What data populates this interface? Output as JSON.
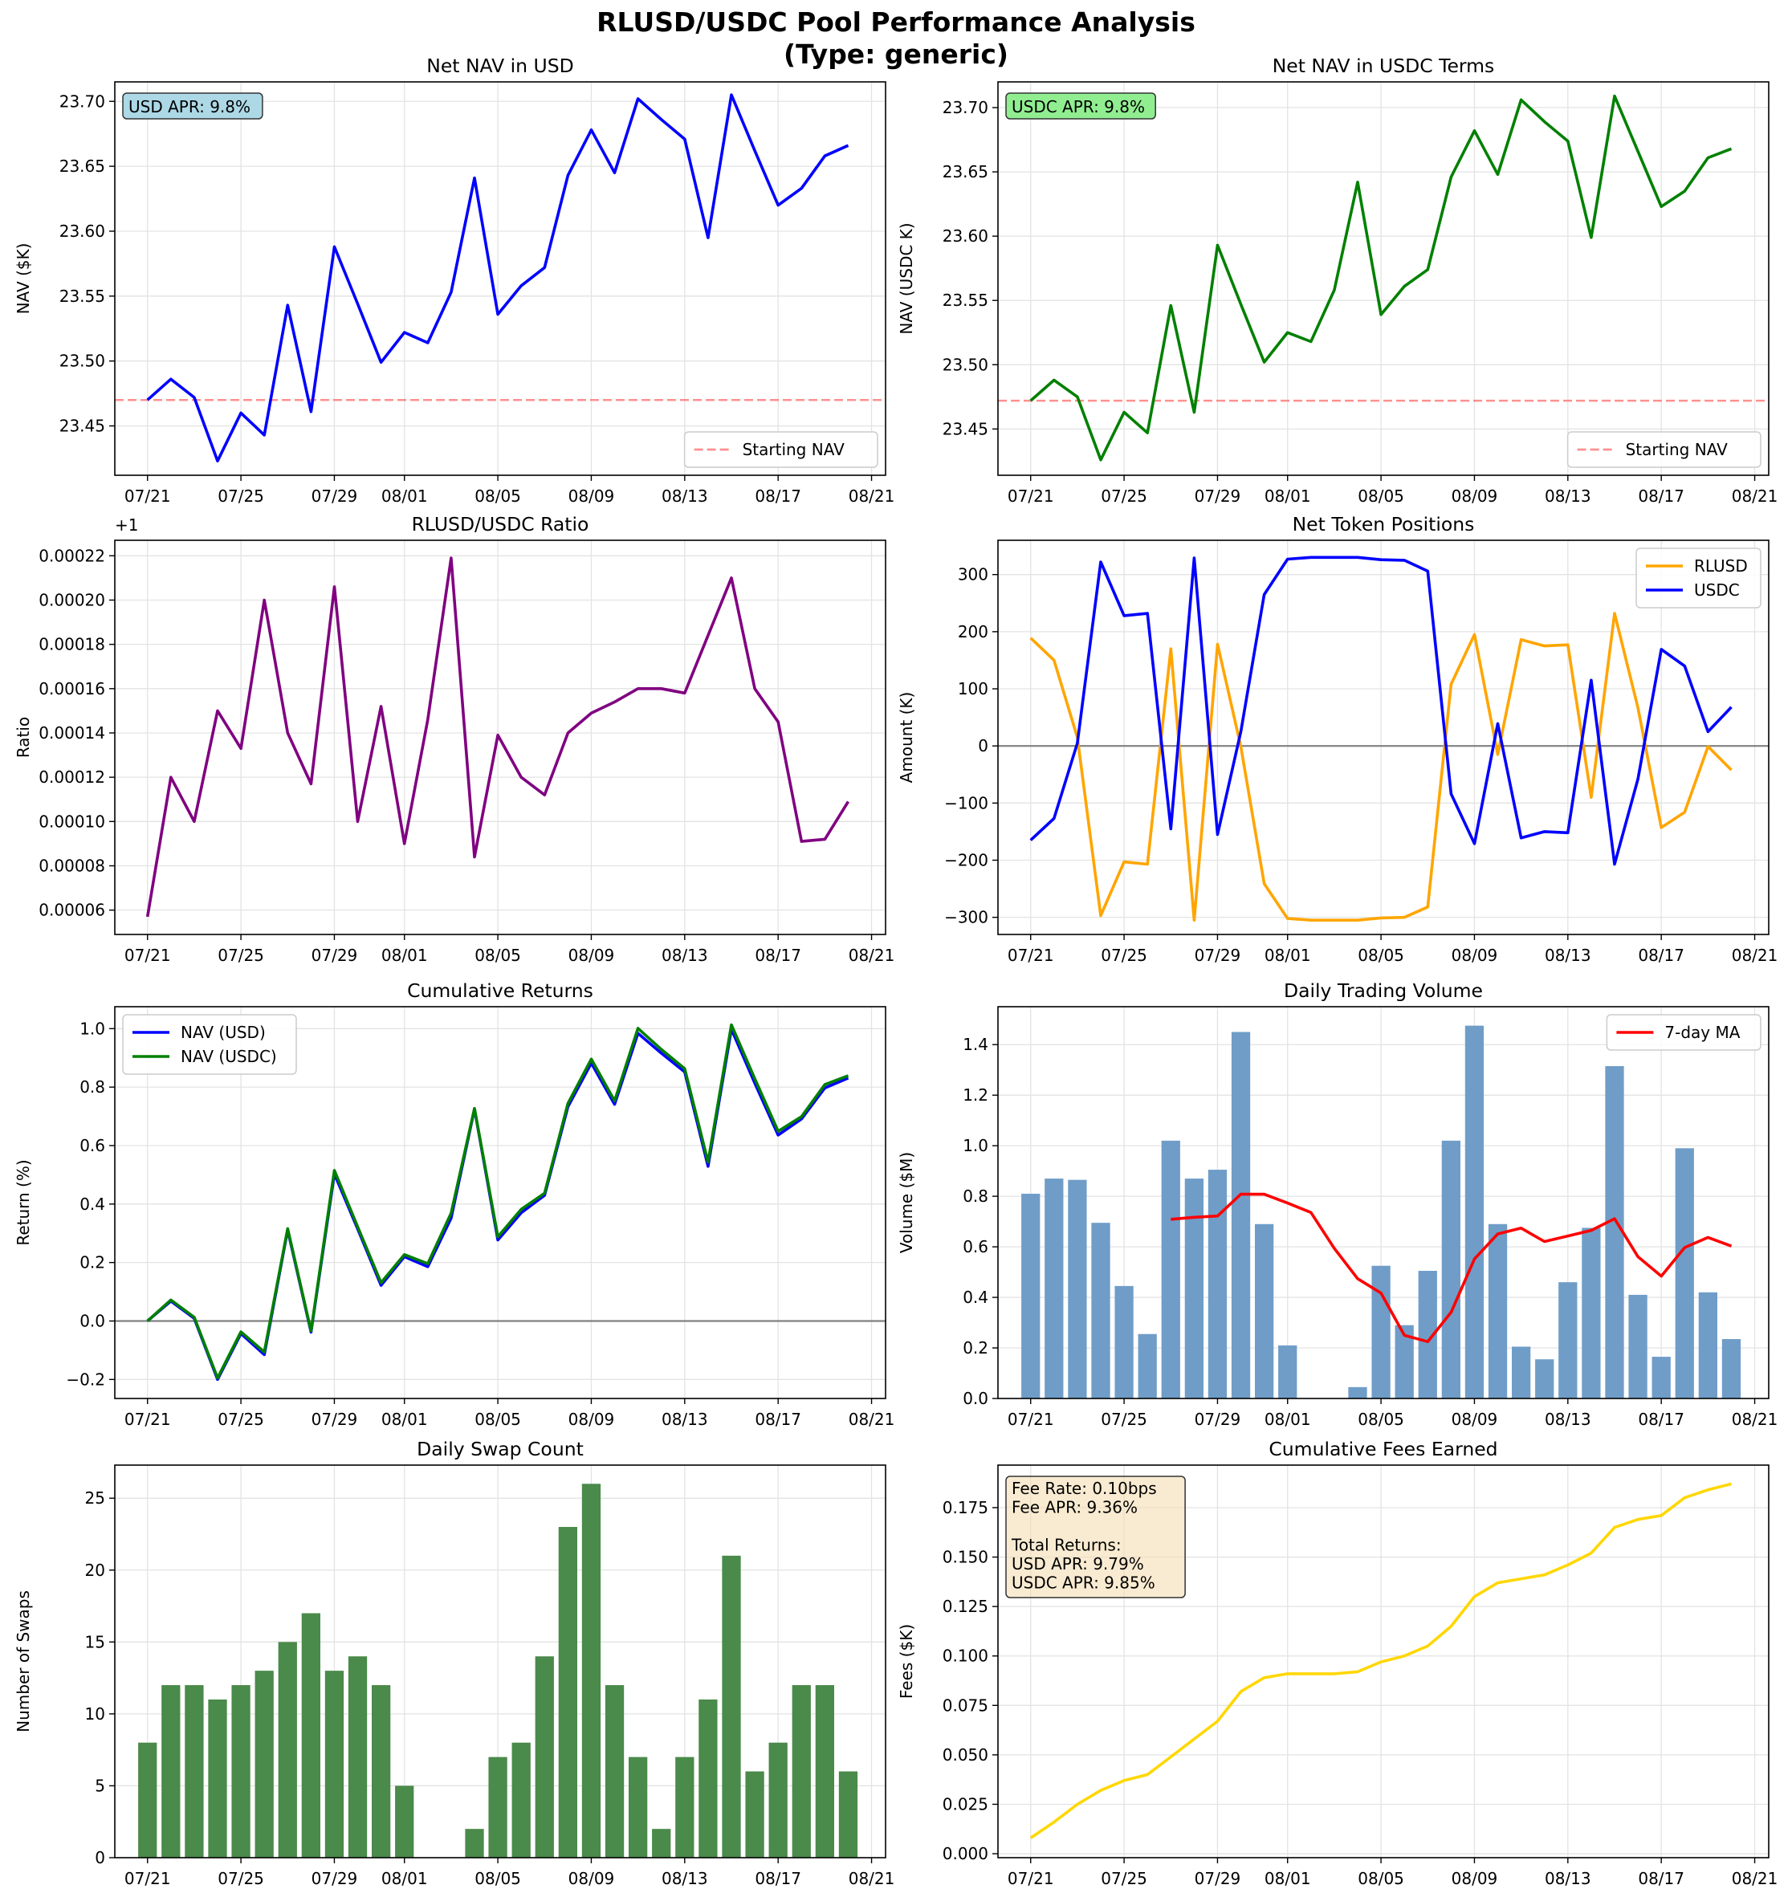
{
  "figure": {
    "title_line1": "RLUSD/USDC Pool Performance Analysis",
    "title_line2": "(Type: generic)"
  },
  "chart_data": [
    {
      "id": "nav_usd",
      "type": "line",
      "title": "Net NAV in USD",
      "xlabel": "",
      "ylabel": "NAV ($K)",
      "ylim": [
        23.412,
        23.715
      ],
      "yticks": [
        23.45,
        23.5,
        23.55,
        23.6,
        23.65,
        23.7
      ],
      "ytick_decimals": 2,
      "grid": true,
      "legend": "lower-right",
      "series": [
        {
          "name": "",
          "color": "#0000ff",
          "values": [
            23.47,
            23.486,
            23.472,
            23.423,
            23.46,
            23.443,
            23.543,
            23.461,
            23.588,
            23.544,
            23.499,
            23.522,
            23.514,
            23.553,
            23.641,
            23.536,
            23.558,
            23.572,
            23.643,
            23.678,
            23.645,
            23.702,
            23.686,
            23.671,
            23.595,
            23.705,
            23.662,
            23.62,
            23.633,
            23.658,
            23.666
          ]
        }
      ],
      "hlines": [
        {
          "name": "Starting NAV",
          "y": 23.47,
          "color": "#ff6b6b",
          "dashed": true
        }
      ],
      "annotation": {
        "text": "USD APR: 9.8%",
        "bg": "#add8e6"
      }
    },
    {
      "id": "nav_usdc",
      "type": "line",
      "title": "Net NAV in USDC Terms",
      "xlabel": "",
      "ylabel": "NAV (USDC K)",
      "ylim": [
        23.414,
        23.72
      ],
      "yticks": [
        23.45,
        23.5,
        23.55,
        23.6,
        23.65,
        23.7
      ],
      "ytick_decimals": 2,
      "grid": true,
      "legend": "lower-right",
      "series": [
        {
          "name": "",
          "color": "#008000",
          "values": [
            23.472,
            23.488,
            23.475,
            23.426,
            23.463,
            23.447,
            23.546,
            23.463,
            23.593,
            23.547,
            23.502,
            23.525,
            23.518,
            23.558,
            23.642,
            23.539,
            23.561,
            23.574,
            23.646,
            23.682,
            23.648,
            23.706,
            23.689,
            23.674,
            23.599,
            23.709,
            23.666,
            23.623,
            23.635,
            23.661,
            23.668
          ]
        }
      ],
      "hlines": [
        {
          "name": "Starting NAV",
          "y": 23.472,
          "color": "#ff6b6b",
          "dashed": true
        }
      ],
      "annotation": {
        "text": "USDC APR: 9.8%",
        "bg": "#90ee90"
      }
    },
    {
      "id": "ratio",
      "type": "line",
      "title": "RLUSD/USDC Ratio",
      "xlabel": "",
      "ylabel": "Ratio",
      "offset_label": "+1",
      "ylim": [
        4.9e-05,
        0.000227
      ],
      "yticks": [
        6e-05,
        8e-05,
        0.0001,
        0.00012,
        0.00014,
        0.00016,
        0.00018,
        0.0002,
        0.00022
      ],
      "ytick_decimals": 5,
      "grid": true,
      "legend": "none",
      "series": [
        {
          "name": "",
          "color": "#800080",
          "values": [
            5.7e-05,
            0.00012,
            0.0001,
            0.00015,
            0.000133,
            0.0002,
            0.00014,
            0.000117,
            0.000206,
            0.0001,
            0.000152,
            9e-05,
            0.000146,
            0.000219,
            8.4e-05,
            0.000139,
            0.00012,
            0.000112,
            0.00014,
            0.000149,
            0.000154,
            0.00016,
            0.00016,
            0.000158,
            0.000184,
            0.00021,
            0.00016,
            0.000145,
            9.1e-05,
            9.2e-05,
            0.000109
          ]
        }
      ]
    },
    {
      "id": "positions",
      "type": "line",
      "title": "Net Token Positions",
      "xlabel": "",
      "ylabel": "Amount (K)",
      "ylim": [
        -330,
        360
      ],
      "yticks": [
        -300,
        -200,
        -100,
        0,
        100,
        200,
        300
      ],
      "ytick_decimals": 0,
      "grid": true,
      "legend": "top-right",
      "series": [
        {
          "name": "RLUSD",
          "color": "#ffa500",
          "values": [
            189,
            150,
            15,
            -297,
            -203,
            -207,
            170,
            -305,
            178,
            -1,
            -241,
            -302,
            -305,
            -305,
            -305,
            -301,
            -300,
            -282,
            108,
            195,
            -15,
            186,
            175,
            177,
            -90,
            232,
            67,
            -143,
            -116,
            -1,
            -42
          ]
        },
        {
          "name": "USDC",
          "color": "#0000ff",
          "values": [
            -165,
            -127,
            5,
            322,
            228,
            232,
            -145,
            329,
            -155,
            25,
            265,
            327,
            330,
            330,
            330,
            326,
            325,
            306,
            -84,
            -171,
            39,
            -161,
            -150,
            -152,
            115,
            -207,
            -58,
            169,
            140,
            25,
            68
          ]
        }
      ],
      "hlines": [
        {
          "name": "",
          "y": 0,
          "color": "#808080",
          "dashed": false
        }
      ]
    },
    {
      "id": "cum_returns",
      "type": "line",
      "title": "Cumulative Returns",
      "xlabel": "",
      "ylabel": "Return (%)",
      "ylim": [
        -0.265,
        1.075
      ],
      "yticks": [
        -0.2,
        0.0,
        0.2,
        0.4,
        0.6,
        0.8,
        1.0
      ],
      "ytick_decimals": 1,
      "grid": true,
      "legend": "top-left",
      "series": [
        {
          "name": "NAV (USD)",
          "color": "#0000ff",
          "values": [
            0.0,
            0.068,
            0.009,
            -0.2,
            -0.043,
            -0.115,
            0.311,
            -0.038,
            0.503,
            0.315,
            0.122,
            0.22,
            0.186,
            0.352,
            0.725,
            0.277,
            0.37,
            0.43,
            0.733,
            0.882,
            0.741,
            0.984,
            0.916,
            0.852,
            0.529,
            0.998,
            0.814,
            0.636,
            0.691,
            0.797,
            0.831
          ]
        },
        {
          "name": "NAV (USDC)",
          "color": "#008000",
          "values": [
            0.0,
            0.072,
            0.013,
            -0.195,
            -0.037,
            -0.106,
            0.316,
            -0.034,
            0.515,
            0.322,
            0.131,
            0.227,
            0.196,
            0.369,
            0.727,
            0.288,
            0.382,
            0.437,
            0.744,
            0.896,
            0.753,
            1.001,
            0.929,
            0.863,
            0.544,
            1.013,
            0.829,
            0.649,
            0.699,
            0.809,
            0.839
          ]
        }
      ],
      "hlines": [
        {
          "name": "",
          "y": 0,
          "color": "#808080",
          "dashed": false
        }
      ]
    },
    {
      "id": "volume",
      "type": "bar",
      "title": "Daily Trading Volume",
      "xlabel": "",
      "ylabel": "Volume ($M)",
      "ylim": [
        0,
        1.55
      ],
      "yticks": [
        0.0,
        0.2,
        0.4,
        0.6,
        0.8,
        1.0,
        1.2,
        1.4
      ],
      "ytick_decimals": 1,
      "grid": true,
      "legend": "top-right",
      "bar_color": "#6f9dc8",
      "values": [
        0.81,
        0.87,
        0.865,
        0.695,
        0.445,
        0.255,
        1.02,
        0.87,
        0.905,
        1.45,
        0.69,
        0.21,
        0,
        0,
        0.045,
        0.525,
        0.29,
        0.505,
        1.02,
        1.475,
        0.69,
        0.205,
        0.155,
        0.46,
        0.675,
        1.315,
        0.41,
        0.165,
        0.99,
        0.42,
        0.235
      ],
      "series": [
        {
          "name": "7-day MA",
          "color": "#ff0000",
          "values": [
            null,
            null,
            null,
            null,
            null,
            null,
            0.709,
            0.717,
            0.722,
            0.808,
            0.808,
            0.773,
            0.736,
            0.594,
            0.474,
            0.417,
            0.25,
            0.225,
            0.341,
            0.552,
            0.651,
            0.674,
            0.621,
            0.643,
            0.665,
            0.711,
            0.561,
            0.484,
            0.597,
            0.637,
            0.603
          ]
        }
      ]
    },
    {
      "id": "swaps",
      "type": "bar",
      "title": "Daily Swap Count",
      "xlabel": "",
      "ylabel": "Number of Swaps",
      "ylim": [
        0,
        27.3
      ],
      "yticks": [
        0,
        5,
        10,
        15,
        20,
        25
      ],
      "ytick_decimals": 0,
      "grid": true,
      "legend": "none",
      "bar_color": "#4a8a4a",
      "values": [
        8,
        12,
        12,
        11,
        12,
        13,
        15,
        17,
        13,
        14,
        12,
        5,
        0,
        0,
        2,
        7,
        8,
        14,
        23,
        26,
        12,
        7,
        2,
        7,
        11,
        21,
        6,
        8,
        12,
        12,
        6
      ]
    },
    {
      "id": "fees",
      "type": "line",
      "title": "Cumulative Fees Earned",
      "xlabel": "",
      "ylabel": "Fees ($K)",
      "ylim": [
        -0.002,
        0.1965
      ],
      "yticks": [
        0.0,
        0.025,
        0.05,
        0.075,
        0.1,
        0.125,
        0.15,
        0.175
      ],
      "ytick_decimals": 3,
      "grid": true,
      "legend": "none",
      "series": [
        {
          "name": "",
          "color": "#ffd700",
          "values": [
            0.008,
            0.016,
            0.025,
            0.032,
            0.037,
            0.04,
            0.049,
            0.058,
            0.067,
            0.082,
            0.089,
            0.091,
            0.091,
            0.091,
            0.092,
            0.097,
            0.1,
            0.105,
            0.115,
            0.13,
            0.137,
            0.139,
            0.141,
            0.146,
            0.152,
            0.165,
            0.169,
            0.171,
            0.18,
            0.184,
            0.187
          ]
        }
      ],
      "annotation_lines": [
        "Fee Rate: 0.10bps",
        "Fee APR: 9.36%",
        "",
        "Total Returns:",
        "USD APR: 9.79%",
        "USDC APR: 9.85%"
      ]
    }
  ],
  "x_axis": {
    "first_day": "07/21",
    "n_days": 31,
    "ticks": [
      {
        "label": "07/21",
        "day": 0
      },
      {
        "label": "07/25",
        "day": 4
      },
      {
        "label": "07/29",
        "day": 8
      },
      {
        "label": "08/01",
        "day": 11
      },
      {
        "label": "08/05",
        "day": 15
      },
      {
        "label": "08/09",
        "day": 19
      },
      {
        "label": "08/13",
        "day": 23
      },
      {
        "label": "08/17",
        "day": 27
      },
      {
        "label": "08/21",
        "day": 31
      }
    ]
  }
}
